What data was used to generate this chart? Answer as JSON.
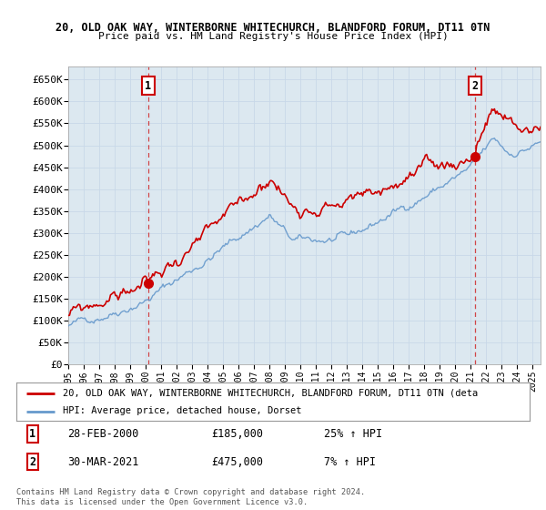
{
  "title1": "20, OLD OAK WAY, WINTERBORNE WHITECHURCH, BLANDFORD FORUM, DT11 0TN",
  "title2": "Price paid vs. HM Land Registry's House Price Index (HPI)",
  "legend_label1": "20, OLD OAK WAY, WINTERBORNE WHITECHURCH, BLANDFORD FORUM, DT11 0TN (deta",
  "legend_label2": "HPI: Average price, detached house, Dorset",
  "annotation1_label": "1",
  "annotation1_date": "28-FEB-2000",
  "annotation1_price": "£185,000",
  "annotation1_hpi": "25% ↑ HPI",
  "annotation2_label": "2",
  "annotation2_date": "30-MAR-2021",
  "annotation2_price": "£475,000",
  "annotation2_hpi": "7% ↑ HPI",
  "footer": "Contains HM Land Registry data © Crown copyright and database right 2024.\nThis data is licensed under the Open Government Licence v3.0.",
  "sale1_x": 2000.15,
  "sale1_y": 185000,
  "sale2_x": 2021.25,
  "sale2_y": 475000,
  "ylim_min": 0,
  "ylim_max": 680000,
  "xlim_min": 1995,
  "xlim_max": 2025.5,
  "price_color": "#cc0000",
  "hpi_color": "#6699cc",
  "vline_color": "#cc0000",
  "grid_color": "#c8d8e8",
  "plot_bg_color": "#dce8f0",
  "bg_color": "#ffffff",
  "yticks": [
    0,
    50000,
    100000,
    150000,
    200000,
    250000,
    300000,
    350000,
    400000,
    450000,
    500000,
    550000,
    600000,
    650000
  ],
  "ytick_labels": [
    "£0",
    "£50K",
    "£100K",
    "£150K",
    "£200K",
    "£250K",
    "£300K",
    "£350K",
    "£400K",
    "£450K",
    "£500K",
    "£550K",
    "£600K",
    "£650K"
  ]
}
